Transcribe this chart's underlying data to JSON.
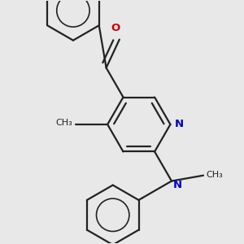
{
  "bg_color": "#e8e8e8",
  "bond_color": "#222222",
  "N_color": "#0000cc",
  "O_color": "#cc0000",
  "lw": 1.6,
  "dbo": 0.022,
  "r": 0.13,
  "figsize": [
    3.0,
    3.0
  ],
  "dpi": 100,
  "xlim": [
    0.05,
    1.0
  ],
  "ylim": [
    0.02,
    1.02
  ]
}
